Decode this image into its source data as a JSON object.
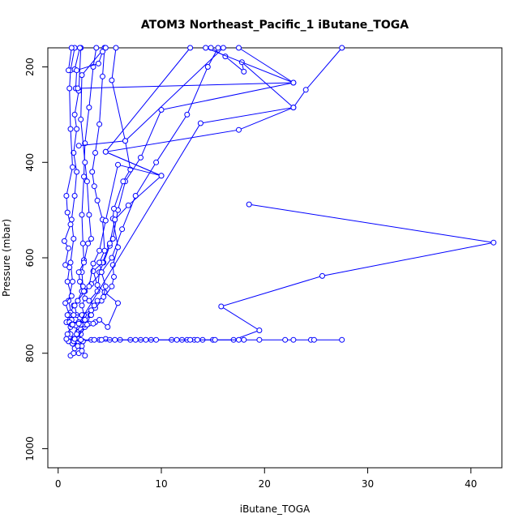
{
  "chart_data": {
    "type": "line",
    "title": "ATOM3 Northeast_Pacific_1 iButane_TOGA",
    "xlabel": "iButane_TOGA",
    "ylabel": "Pressure (mbar)",
    "xlim": [
      -1,
      43
    ],
    "ylim": [
      1040,
      160
    ],
    "y_reversed": true,
    "grid": false,
    "legend": "none",
    "x_ticks": [
      0,
      10,
      20,
      30,
      40
    ],
    "y_ticks": [
      200,
      400,
      600,
      800,
      1000
    ],
    "x_tick_labels": [
      "0",
      "10",
      "20",
      "30",
      "40"
    ],
    "y_tick_labels": [
      "200",
      "400",
      "600",
      "800",
      "1000"
    ],
    "series_color": "#0000ff",
    "series": [
      {
        "points": [
          [
            1.2,
            805
          ],
          [
            1.5,
            800
          ],
          [
            1.8,
            785
          ],
          [
            1.5,
            770
          ],
          [
            1.2,
            760
          ],
          [
            1.0,
            735
          ],
          [
            1.3,
            720
          ],
          [
            1.0,
            690
          ],
          [
            1.4,
            650
          ],
          [
            1.2,
            610
          ],
          [
            1.5,
            560
          ],
          [
            1.3,
            520
          ],
          [
            1.6,
            470
          ],
          [
            1.8,
            420
          ],
          [
            1.5,
            380
          ],
          [
            1.8,
            330
          ],
          [
            1.6,
            300
          ],
          [
            2.0,
            250
          ],
          [
            2.2,
            160
          ]
        ]
      },
      {
        "points": [
          [
            2.0,
            800
          ],
          [
            2.3,
            785
          ],
          [
            2.0,
            770
          ],
          [
            1.9,
            755
          ],
          [
            2.2,
            740
          ],
          [
            2.5,
            720
          ],
          [
            2.3,
            700
          ],
          [
            2.6,
            685
          ],
          [
            2.4,
            660
          ],
          [
            2.3,
            630
          ],
          [
            2.5,
            605
          ],
          [
            2.4,
            570
          ],
          [
            2.3,
            510
          ],
          [
            2.5,
            430
          ],
          [
            2.6,
            360
          ],
          [
            3.0,
            285
          ],
          [
            3.4,
            200
          ],
          [
            3.7,
            160
          ]
        ]
      },
      {
        "points": [
          [
            1.6,
            790
          ],
          [
            1.9,
            775
          ],
          [
            2.2,
            760
          ],
          [
            2.8,
            740
          ],
          [
            3.1,
            720
          ],
          [
            3.5,
            700
          ],
          [
            3.0,
            690
          ],
          [
            3.8,
            670
          ],
          [
            4.0,
            630
          ],
          [
            4.4,
            610
          ],
          [
            5.0,
            575
          ],
          [
            5.3,
            560
          ],
          [
            5.8,
            500
          ],
          [
            6.5,
            440
          ],
          [
            8.0,
            390
          ],
          [
            10.0,
            290
          ],
          [
            22.8,
            233
          ],
          [
            17.5,
            160
          ]
        ]
      },
      {
        "points": [
          [
            2.6,
            805
          ],
          [
            2.3,
            795
          ],
          [
            1.9,
            785
          ],
          [
            1.6,
            770
          ],
          [
            2.0,
            755
          ],
          [
            1.5,
            740
          ],
          [
            1.3,
            730
          ],
          [
            1.2,
            715
          ],
          [
            1.5,
            700
          ],
          [
            1.9,
            690
          ],
          [
            2.6,
            670
          ],
          [
            3.2,
            655
          ],
          [
            4.2,
            630
          ],
          [
            5.2,
            600
          ],
          [
            6.2,
            540
          ],
          [
            7.5,
            470
          ],
          [
            9.5,
            400
          ],
          [
            12.5,
            300
          ],
          [
            14.5,
            200
          ],
          [
            15.5,
            160
          ]
        ]
      },
      {
        "points": [
          [
            0.9,
            760
          ],
          [
            1.2,
            745
          ],
          [
            0.8,
            735
          ],
          [
            1.1,
            720
          ],
          [
            0.7,
            695
          ],
          [
            1.3,
            680
          ],
          [
            0.9,
            650
          ],
          [
            1.1,
            620
          ],
          [
            0.7,
            615
          ],
          [
            1.0,
            580
          ],
          [
            0.6,
            565
          ],
          [
            1.2,
            530
          ],
          [
            0.9,
            505
          ],
          [
            0.8,
            470
          ],
          [
            1.4,
            410
          ],
          [
            1.2,
            330
          ],
          [
            1.1,
            245
          ],
          [
            1.2,
            207
          ],
          [
            1.6,
            160
          ]
        ]
      },
      {
        "points": [
          [
            1.0,
            775
          ],
          [
            1.4,
            780
          ],
          [
            2.0,
            770
          ],
          [
            2.2,
            750
          ],
          [
            2.6,
            730
          ],
          [
            3.2,
            720
          ],
          [
            3.6,
            705
          ],
          [
            4.2,
            690
          ],
          [
            5.2,
            660
          ],
          [
            5.4,
            640
          ],
          [
            5.3,
            615
          ],
          [
            5.8,
            578
          ],
          [
            5.3,
            518
          ],
          [
            5.4,
            497
          ],
          [
            6.3,
            440
          ],
          [
            7.0,
            415
          ],
          [
            6.5,
            355
          ],
          [
            5.2,
            228
          ],
          [
            5.6,
            160
          ]
        ]
      },
      {
        "points": [
          [
            1.5,
            775
          ],
          [
            1.8,
            760
          ],
          [
            2.6,
            745
          ],
          [
            2.0,
            735
          ],
          [
            1.8,
            720
          ],
          [
            1.6,
            700
          ],
          [
            1.9,
            690
          ],
          [
            2.3,
            670
          ],
          [
            2.1,
            650
          ],
          [
            2.0,
            630
          ],
          [
            2.5,
            610
          ],
          [
            2.9,
            570
          ],
          [
            3.2,
            560
          ],
          [
            3.0,
            510
          ],
          [
            2.8,
            440
          ],
          [
            2.6,
            400
          ],
          [
            2.2,
            310
          ],
          [
            2.3,
            217
          ],
          [
            4.5,
            160
          ]
        ]
      },
      {
        "points": [
          [
            1.1,
            735
          ],
          [
            2.0,
            735
          ],
          [
            3.6,
            735
          ],
          [
            4.0,
            730
          ],
          [
            4.8,
            745
          ],
          [
            5.8,
            695
          ],
          [
            4.5,
            672
          ],
          [
            3.8,
            657
          ],
          [
            3.4,
            628
          ],
          [
            4.3,
            610
          ],
          [
            5.0,
            570
          ],
          [
            5.5,
            520
          ],
          [
            6.8,
            490
          ],
          [
            10.0,
            428
          ],
          [
            4.6,
            378
          ],
          [
            17.5,
            332
          ],
          [
            22.8,
            285
          ],
          [
            24.0,
            248
          ],
          [
            27.5,
            160
          ]
        ]
      },
      {
        "points": [
          [
            0.9,
            720
          ],
          [
            1.5,
            720
          ],
          [
            2.3,
            720
          ],
          [
            3.2,
            710
          ],
          [
            3.5,
            700
          ],
          [
            3.8,
            690
          ],
          [
            4.4,
            682
          ],
          [
            4.6,
            660
          ],
          [
            4.2,
            630
          ],
          [
            4.0,
            610
          ],
          [
            4.5,
            585
          ],
          [
            4.3,
            520
          ],
          [
            3.8,
            480
          ],
          [
            3.5,
            450
          ],
          [
            3.3,
            420
          ],
          [
            3.6,
            380
          ],
          [
            4.0,
            320
          ],
          [
            4.3,
            220
          ],
          [
            4.5,
            160
          ]
        ]
      },
      {
        "points": [
          [
            0.8,
            770
          ],
          [
            1.6,
            770
          ],
          [
            2.4,
            775
          ],
          [
            3.2,
            772
          ],
          [
            4.0,
            772
          ],
          [
            4.6,
            770
          ],
          [
            5.0,
            772
          ],
          [
            6.0,
            772
          ],
          [
            7.0,
            772
          ],
          [
            8.0,
            772
          ],
          [
            9.0,
            772
          ],
          [
            11.0,
            772
          ],
          [
            12.0,
            772
          ],
          [
            12.5,
            772
          ],
          [
            13.2,
            772
          ],
          [
            14.0,
            772
          ],
          [
            15.0,
            772
          ],
          [
            17.0,
            772
          ],
          [
            19.5,
            752
          ],
          [
            15.8,
            702
          ],
          [
            25.6,
            638
          ],
          [
            42.2,
            568
          ],
          [
            18.5,
            488
          ]
        ]
      },
      {
        "points": [
          [
            2.2,
            772
          ],
          [
            3.5,
            772
          ],
          [
            4.2,
            772
          ],
          [
            5.5,
            772
          ],
          [
            7.5,
            772
          ],
          [
            8.5,
            772
          ],
          [
            9.5,
            772
          ],
          [
            11.5,
            772
          ],
          [
            12.8,
            772
          ],
          [
            13.5,
            772
          ],
          [
            15.2,
            772
          ],
          [
            17.5,
            772
          ],
          [
            18.0,
            772
          ],
          [
            19.5,
            772
          ],
          [
            22.0,
            772
          ],
          [
            22.8,
            772
          ],
          [
            24.5,
            772
          ],
          [
            24.8,
            772
          ],
          [
            27.5,
            772
          ]
        ]
      },
      {
        "points": [
          [
            1.3,
            740
          ],
          [
            2.6,
            740
          ],
          [
            3.0,
            738
          ],
          [
            3.4,
            738
          ],
          [
            2.8,
            740
          ],
          [
            2.2,
            740
          ],
          [
            1.7,
            742
          ],
          [
            1.4,
            740
          ],
          [
            2.0,
            738
          ],
          [
            13.8,
            318
          ],
          [
            22.8,
            285
          ],
          [
            17.8,
            190
          ],
          [
            18.0,
            210
          ],
          [
            16.2,
            178
          ],
          [
            14.8,
            160
          ]
        ]
      },
      {
        "points": [
          [
            2.5,
            670
          ],
          [
            3.0,
            660
          ],
          [
            3.4,
            612
          ],
          [
            4.0,
            585
          ],
          [
            4.6,
            522
          ],
          [
            5.8,
            405
          ],
          [
            10.0,
            428
          ],
          [
            4.6,
            378
          ],
          [
            12.8,
            160
          ]
        ]
      },
      {
        "points": [
          [
            1.6,
            205
          ],
          [
            2.1,
            160
          ]
        ]
      },
      {
        "points": [
          [
            1.0,
            207
          ],
          [
            1.3,
            160
          ]
        ]
      },
      {
        "points": [
          [
            1.7,
            245
          ],
          [
            1.8,
            207
          ],
          [
            3.9,
            193
          ],
          [
            4.3,
            168
          ],
          [
            4.6,
            160
          ]
        ]
      },
      {
        "points": [
          [
            2.0,
            365
          ],
          [
            6.5,
            355
          ],
          [
            16.0,
            160
          ]
        ]
      },
      {
        "points": [
          [
            1.9,
            245
          ],
          [
            22.8,
            233
          ],
          [
            14.3,
            160
          ]
        ]
      }
    ]
  }
}
